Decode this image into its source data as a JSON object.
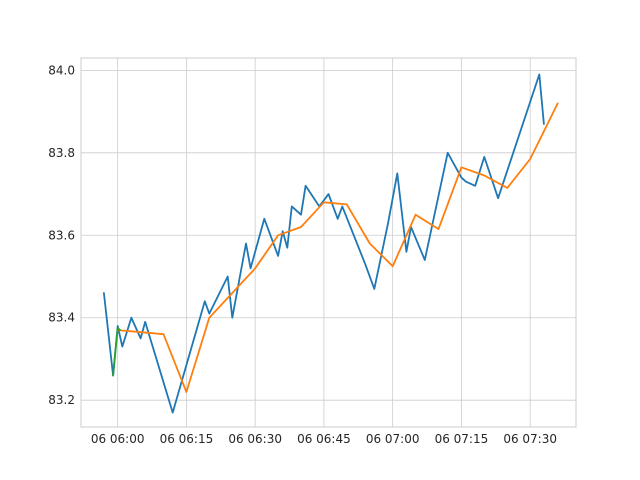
{
  "chart_data": {
    "type": "line",
    "title": "",
    "xlabel": "",
    "ylabel": "",
    "grid": true,
    "legend": "none",
    "x_unit": "minutes",
    "x_ticks": [
      {
        "value": 0,
        "label": "06 06:00"
      },
      {
        "value": 15,
        "label": "06 06:15"
      },
      {
        "value": 30,
        "label": "06 06:30"
      },
      {
        "value": 45,
        "label": "06 06:45"
      },
      {
        "value": 60,
        "label": "06 07:00"
      },
      {
        "value": 75,
        "label": "06 07:15"
      },
      {
        "value": 90,
        "label": "06 07:30"
      }
    ],
    "y_ticks": [
      {
        "value": 83.2,
        "label": "83.2"
      },
      {
        "value": 83.4,
        "label": "83.4"
      },
      {
        "value": 83.6,
        "label": "83.6"
      },
      {
        "value": 83.8,
        "label": "83.8"
      },
      {
        "value": 84.0,
        "label": "84.0"
      }
    ],
    "xlim": [
      -8,
      100
    ],
    "ylim": [
      83.135,
      84.03
    ],
    "series": [
      {
        "color": "#1f77b4",
        "points": [
          [
            -3,
            83.46
          ],
          [
            -1,
            83.26
          ],
          [
            0,
            83.38
          ],
          [
            1,
            83.33
          ],
          [
            3,
            83.4
          ],
          [
            5,
            83.35
          ],
          [
            6,
            83.39
          ],
          [
            12,
            83.17
          ],
          [
            19,
            83.44
          ],
          [
            20,
            83.41
          ],
          [
            24,
            83.5
          ],
          [
            25,
            83.4
          ],
          [
            28,
            83.58
          ],
          [
            29,
            83.52
          ],
          [
            32,
            83.64
          ],
          [
            35,
            83.55
          ],
          [
            36,
            83.61
          ],
          [
            37,
            83.57
          ],
          [
            38,
            83.67
          ],
          [
            40,
            83.65
          ],
          [
            41,
            83.72
          ],
          [
            44,
            83.67
          ],
          [
            46,
            83.7
          ],
          [
            48,
            83.64
          ],
          [
            49,
            83.67
          ],
          [
            54,
            83.53
          ],
          [
            56,
            83.47
          ],
          [
            59,
            83.63
          ],
          [
            61,
            83.75
          ],
          [
            63,
            83.56
          ],
          [
            64,
            83.62
          ],
          [
            67,
            83.54
          ],
          [
            72,
            83.8
          ],
          [
            75,
            83.74
          ],
          [
            76,
            83.73
          ],
          [
            78,
            83.72
          ],
          [
            80,
            83.79
          ],
          [
            83,
            83.69
          ],
          [
            92,
            83.99
          ],
          [
            93,
            83.87
          ]
        ]
      },
      {
        "color": "#ff7f0e",
        "points": [
          [
            0,
            83.37
          ],
          [
            10,
            83.36
          ],
          [
            15,
            83.22
          ],
          [
            20,
            83.4
          ],
          [
            25,
            83.46
          ],
          [
            30,
            83.52
          ],
          [
            35,
            83.6
          ],
          [
            40,
            83.62
          ],
          [
            45,
            83.68
          ],
          [
            50,
            83.675
          ],
          [
            55,
            83.58
          ],
          [
            60,
            83.525
          ],
          [
            65,
            83.65
          ],
          [
            70,
            83.615
          ],
          [
            75,
            83.765
          ],
          [
            80,
            83.745
          ],
          [
            85,
            83.715
          ],
          [
            90,
            83.785
          ],
          [
            96,
            83.92
          ]
        ]
      },
      {
        "color": "#2ca02c",
        "points": [
          [
            -1,
            83.26
          ],
          [
            0,
            83.375
          ],
          [
            0.5,
            83.37
          ]
        ]
      }
    ]
  }
}
